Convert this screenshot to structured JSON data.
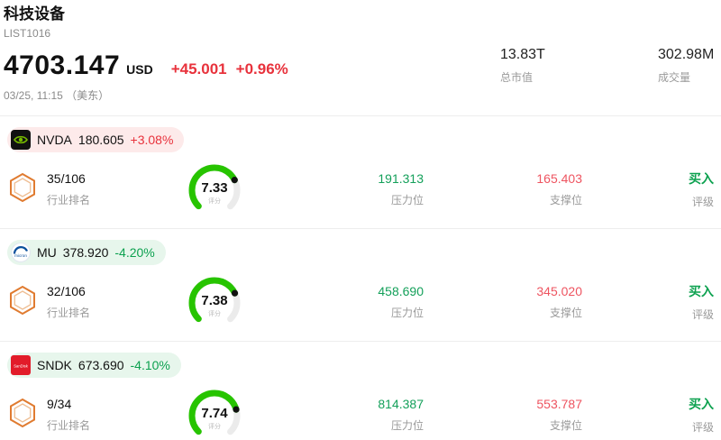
{
  "header": {
    "title": "科技设备",
    "list_id": "LIST1016",
    "price": "4703.147",
    "currency": "USD",
    "change": "+45.001",
    "change_pct": "+0.96%",
    "direction": "up",
    "timestamp": "03/25, 11:15 （美东）",
    "market_cap": {
      "value": "13.83T",
      "label": "总市值"
    },
    "volume": {
      "value": "302.98M",
      "label": "成交量"
    }
  },
  "labels": {
    "rank": "行业排名",
    "score": "评分",
    "pressure": "压力位",
    "support": "支撑位",
    "rating": "评级"
  },
  "stocks": [
    {
      "symbol": "NVDA",
      "icon": "nvidia-logo",
      "price": "180.605",
      "change_pct": "+3.08%",
      "direction": "up",
      "rank": "35/106",
      "score": 7.33,
      "pressure": "191.313",
      "support": "165.403",
      "rating": "买入"
    },
    {
      "symbol": "MU",
      "icon": "micron-logo",
      "price": "378.920",
      "change_pct": "-4.20%",
      "direction": "down",
      "rank": "32/106",
      "score": 7.38,
      "pressure": "458.690",
      "support": "345.020",
      "rating": "买入"
    },
    {
      "symbol": "SNDK",
      "icon": "sandisk-logo",
      "price": "673.690",
      "change_pct": "-4.10%",
      "direction": "down",
      "rank": "9/34",
      "score": 7.74,
      "pressure": "814.387",
      "support": "553.787",
      "rating": "买入"
    }
  ],
  "colors": {
    "up": "#e8323c",
    "down": "#0ca14f",
    "up-bg": "#fdeaea",
    "down-bg": "#e7f6ec",
    "pressure": "#14a05a",
    "support": "#ee5460",
    "buy": "#0ca14f",
    "gauge": "#27c400",
    "gauge-track": "#ebebeb"
  }
}
